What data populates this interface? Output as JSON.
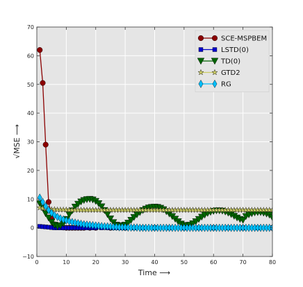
{
  "chart_data": {
    "type": "line",
    "xlabel": "Time ⟶",
    "ylabel": "√MSE ⟶",
    "xlim": [
      0,
      80
    ],
    "ylim": [
      -10,
      70
    ],
    "xticks": [
      0,
      10,
      20,
      30,
      40,
      50,
      60,
      70,
      80
    ],
    "yticks": [
      -10,
      0,
      10,
      20,
      30,
      40,
      50,
      60,
      70
    ],
    "grid": true,
    "background": "#e5e5e5",
    "legend_position": "top-right",
    "series": [
      {
        "name": "SCE-MSPBEM",
        "color": "#8b0000",
        "marker": "circle",
        "x": [
          1,
          2,
          3,
          4,
          5,
          6,
          7,
          8,
          9,
          10,
          11,
          12,
          13,
          14,
          15,
          16,
          18,
          20,
          25,
          30,
          40,
          50,
          60,
          70,
          80
        ],
        "y": [
          62,
          50.5,
          29,
          9,
          3.5,
          1.2,
          0.5,
          0.2,
          0.1,
          0,
          0,
          0,
          0,
          0,
          0,
          0,
          0,
          0,
          0,
          0,
          0,
          0,
          0,
          0,
          0
        ]
      },
      {
        "name": "LSTD(0)",
        "color": "#0000cc",
        "marker": "square",
        "x": [
          1,
          2,
          3,
          4,
          5,
          6,
          7,
          8,
          9,
          10,
          11,
          12,
          13,
          14,
          15,
          16,
          17,
          18,
          19,
          20,
          22,
          24,
          26,
          28,
          30,
          33,
          36,
          40,
          45,
          50,
          55,
          60,
          65,
          70,
          75,
          80
        ],
        "y": [
          0.5,
          0.4,
          0.3,
          0.2,
          0.1,
          0,
          0,
          0,
          0,
          0,
          0,
          0,
          0,
          0,
          0,
          0,
          0,
          0,
          0,
          0,
          0,
          0,
          0,
          0,
          0,
          0,
          0,
          0,
          0,
          0,
          0,
          0,
          0,
          0,
          0,
          0
        ]
      },
      {
        "name": "TD(0)",
        "color": "#006400",
        "marker": "triangle-down",
        "x": [
          1,
          2,
          3,
          4,
          5,
          6,
          7,
          8,
          9,
          10,
          11,
          12,
          13,
          14,
          15,
          16,
          17,
          18,
          19,
          20,
          21,
          22,
          23,
          24,
          25,
          26,
          27,
          28,
          29,
          30,
          31,
          32,
          33,
          34,
          35,
          36,
          37,
          38,
          39,
          40,
          41,
          42,
          43,
          44,
          45,
          46,
          47,
          48,
          49,
          50,
          51,
          52,
          53,
          54,
          55,
          56,
          57,
          58,
          59,
          60,
          61,
          62,
          63,
          64,
          65,
          66,
          67,
          68,
          69,
          70,
          71,
          72,
          73,
          74,
          75,
          76,
          77,
          78,
          79,
          80
        ],
        "y": [
          8.5,
          7,
          5,
          3.5,
          2,
          1,
          0.5,
          0.8,
          1.5,
          3,
          4.6,
          6,
          7.3,
          8.3,
          9.1,
          9.6,
          9.9,
          10,
          9.8,
          9.3,
          8.5,
          7.4,
          6.1,
          4.7,
          3.2,
          1.9,
          1,
          0.8,
          0.7,
          1,
          1.7,
          2.7,
          3.7,
          4.6,
          5.4,
          6.1,
          6.6,
          7,
          7.2,
          7.3,
          7.2,
          6.9,
          6.4,
          5.7,
          4.9,
          4,
          3.1,
          2.2,
          1.4,
          0.9,
          0.8,
          1,
          1.5,
          2.2,
          3,
          3.8,
          4.5,
          5.1,
          5.5,
          5.8,
          6,
          6,
          5.9,
          5.6,
          5.2,
          4.7,
          4.1,
          3.5,
          3,
          2.7,
          4,
          4.6,
          5,
          5.3,
          5.4,
          5.4,
          5.2,
          4.9,
          4.5,
          3.6
        ]
      },
      {
        "name": "GTD2",
        "color": "#cccc66",
        "marker": "star",
        "x": [
          1,
          2,
          3,
          4,
          5,
          6,
          7,
          8,
          9,
          10,
          11,
          12,
          13,
          14,
          15,
          16,
          17,
          18,
          19,
          20,
          21,
          22,
          23,
          24,
          25,
          26,
          27,
          28,
          29,
          30,
          31,
          32,
          33,
          34,
          35,
          36,
          37,
          38,
          39,
          40,
          41,
          42,
          43,
          44,
          45,
          46,
          47,
          48,
          49,
          50,
          51,
          52,
          53,
          54,
          55,
          56,
          57,
          58,
          59,
          60,
          61,
          62,
          63,
          64,
          65,
          66,
          67,
          68,
          69,
          70,
          71,
          72,
          73,
          74,
          75,
          76,
          77,
          78,
          79,
          80
        ],
        "y": [
          7,
          6.8,
          6.6,
          6.5,
          6.4,
          6.4,
          6.3,
          6.3,
          6.3,
          6.3,
          6.2,
          6.2,
          6.2,
          6.2,
          6.2,
          6.2,
          6.2,
          6.2,
          6.2,
          6.2,
          6.2,
          6.2,
          6.2,
          6.2,
          6.2,
          6.2,
          6.2,
          6.2,
          6.2,
          6.2,
          6.2,
          6.2,
          6.2,
          6.2,
          6.2,
          6.2,
          6.2,
          6.2,
          6.2,
          6.2,
          6.2,
          6.2,
          6.2,
          6.2,
          6.2,
          6.2,
          6.2,
          6.2,
          6.2,
          6.2,
          6.2,
          6.2,
          6.2,
          6.2,
          6.2,
          6.2,
          6.2,
          6.2,
          6.2,
          6.2,
          6.2,
          6.2,
          6.2,
          6.2,
          6.2,
          6.2,
          6.2,
          6.2,
          6.2,
          6.2,
          6.2,
          6.2,
          6.2,
          6.2,
          6.2,
          6.2,
          6.2,
          6.2,
          6.2,
          6.2
        ]
      },
      {
        "name": "RG",
        "color": "#00bfff",
        "marker": "diamond",
        "x": [
          1,
          2,
          3,
          4,
          5,
          6,
          7,
          8,
          9,
          10,
          11,
          12,
          13,
          14,
          15,
          16,
          17,
          18,
          19,
          20,
          21,
          22,
          23,
          24,
          25,
          26,
          27,
          28,
          29,
          30,
          31,
          32,
          33,
          34,
          35,
          36,
          37,
          38,
          39,
          40,
          41,
          42,
          43,
          44,
          45,
          46,
          47,
          48,
          49,
          50,
          51,
          52,
          53,
          54,
          55,
          56,
          57,
          58,
          59,
          60,
          61,
          62,
          63,
          64,
          65,
          66,
          67,
          68,
          69,
          70,
          71,
          72,
          73,
          74,
          75,
          76,
          77,
          78,
          79,
          80
        ],
        "y": [
          10.5,
          9,
          7.5,
          6.2,
          5.2,
          4.4,
          3.8,
          3.3,
          2.9,
          2.6,
          2.3,
          2,
          1.8,
          1.6,
          1.4,
          1.2,
          1.1,
          1,
          0.9,
          0.8,
          0.7,
          0.6,
          0.5,
          0.5,
          0.4,
          0.3,
          0.3,
          0.2,
          0.2,
          0.2,
          0.1,
          0.1,
          0.1,
          0.1,
          0,
          0,
          0,
          0,
          0,
          0,
          0,
          0,
          0,
          0,
          0,
          0,
          0,
          0,
          0,
          0,
          0,
          0,
          0,
          0,
          0,
          0,
          0,
          0,
          0,
          0,
          0,
          0,
          0,
          0,
          0,
          0,
          0,
          0,
          0,
          0,
          0,
          0,
          0,
          0,
          0,
          0,
          0,
          0,
          0,
          0
        ]
      }
    ]
  }
}
